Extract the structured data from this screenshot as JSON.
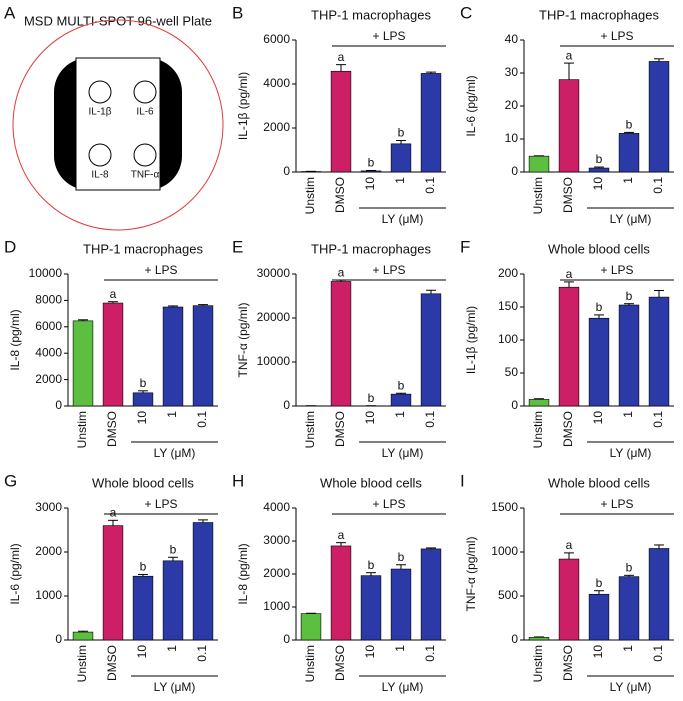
{
  "panel_a": {
    "label": "A",
    "title": "MSD MULTI-SPOT 96-well Plate",
    "spots": [
      "IL-1β",
      "IL-6",
      "IL-8",
      "TNF-α"
    ]
  },
  "chart_data": [
    {
      "type": "bar",
      "panel": "B",
      "title": "THP-1 macrophages",
      "ylabel": "IL-1β (pg/ml)",
      "group_label": "+ LPS",
      "subgroup_label": "LY (μM)",
      "categories": [
        "Unstim",
        "DMSO",
        "10",
        "1",
        "0.1"
      ],
      "colors": [
        "#5cbf3f",
        "#cc1f66",
        "#2b3aa6",
        "#2b3aa6",
        "#2b3aa6"
      ],
      "values": [
        20,
        4580,
        50,
        1280,
        4480
      ],
      "errors": [
        10,
        300,
        20,
        150,
        60
      ],
      "letters": [
        null,
        "a",
        "b",
        "b",
        null
      ],
      "ylim": [
        0,
        6000
      ],
      "yticks": [
        0,
        2000,
        4000,
        6000
      ]
    },
    {
      "type": "bar",
      "panel": "C",
      "title": "THP-1  macrophages",
      "ylabel": "IL-6 (pg/ml)",
      "group_label": "+ LPS",
      "subgroup_label": "LY (μM)",
      "categories": [
        "Unstim",
        "DMSO",
        "10",
        "1",
        "0.1"
      ],
      "colors": [
        "#5cbf3f",
        "#cc1f66",
        "#2b3aa6",
        "#2b3aa6",
        "#2b3aa6"
      ],
      "values": [
        4.8,
        28,
        1.2,
        11.7,
        33.5
      ],
      "errors": [
        0.1,
        5,
        0.3,
        0.3,
        0.8
      ],
      "letters": [
        null,
        "a",
        "b",
        "b",
        null
      ],
      "ylim": [
        0,
        40
      ],
      "yticks": [
        0,
        10,
        20,
        30,
        40
      ]
    },
    {
      "type": "bar",
      "panel": "D",
      "title": "THP-1 macrophages",
      "ylabel": "IL-8 (pg/ml)",
      "group_label": "+ LPS",
      "subgroup_label": "LY (μM)",
      "categories": [
        "Unstim",
        "DMSO",
        "10",
        "1",
        "0.1"
      ],
      "colors": [
        "#5cbf3f",
        "#cc1f66",
        "#2b3aa6",
        "#2b3aa6",
        "#2b3aa6"
      ],
      "values": [
        6450,
        7800,
        1000,
        7500,
        7600
      ],
      "errors": [
        80,
        100,
        150,
        80,
        80
      ],
      "letters": [
        null,
        "a",
        "b",
        null,
        null
      ],
      "ylim": [
        0,
        10000
      ],
      "yticks": [
        0,
        2000,
        4000,
        6000,
        8000,
        10000
      ]
    },
    {
      "type": "bar",
      "panel": "E",
      "title": "THP-1  macrophages",
      "ylabel": "TNF-α (pg/ml)",
      "group_label": "+ LPS",
      "subgroup_label": "LY (μM)",
      "categories": [
        "Unstim",
        "DMSO",
        "10",
        "1",
        "0.1"
      ],
      "colors": [
        "#5cbf3f",
        "#cc1f66",
        "#2b3aa6",
        "#2b3aa6",
        "#2b3aa6"
      ],
      "values": [
        50,
        28300,
        50,
        2700,
        25500
      ],
      "errors": [
        10,
        300,
        10,
        200,
        800
      ],
      "letters": [
        null,
        "a",
        "b",
        "b",
        null
      ],
      "ylim": [
        0,
        30000
      ],
      "yticks": [
        0,
        10000,
        20000,
        30000
      ]
    },
    {
      "type": "bar",
      "panel": "F",
      "title": "Whole blood cells",
      "ylabel": "IL-1β (pg/ml)",
      "group_label": "+ LPS",
      "subgroup_label": "LY (μM)",
      "categories": [
        "Unstim",
        "DMSO",
        "10",
        "1",
        "0.1"
      ],
      "colors": [
        "#5cbf3f",
        "#cc1f66",
        "#2b3aa6",
        "#2b3aa6",
        "#2b3aa6"
      ],
      "values": [
        10,
        180,
        133,
        153,
        165
      ],
      "errors": [
        1,
        8,
        5,
        2,
        10
      ],
      "letters": [
        null,
        "a",
        "b",
        "b",
        null
      ],
      "ylim": [
        0,
        200
      ],
      "yticks": [
        0,
        50,
        100,
        150,
        200
      ]
    },
    {
      "type": "bar",
      "panel": "G",
      "title": "Whole blood cells",
      "ylabel": "IL-6 (pg/ml)",
      "group_label": "+ LPS",
      "subgroup_label": "LY (μM)",
      "categories": [
        "Unstim",
        "DMSO",
        "10",
        "1",
        "0.1"
      ],
      "colors": [
        "#5cbf3f",
        "#cc1f66",
        "#2b3aa6",
        "#2b3aa6",
        "#2b3aa6"
      ],
      "values": [
        180,
        2600,
        1450,
        1800,
        2670
      ],
      "errors": [
        20,
        120,
        40,
        80,
        60
      ],
      "letters": [
        null,
        "a",
        "b",
        "b",
        null
      ],
      "ylim": [
        0,
        3000
      ],
      "yticks": [
        0,
        1000,
        2000,
        3000
      ]
    },
    {
      "type": "bar",
      "panel": "H",
      "title": "Whole blood cells",
      "ylabel": "IL-8 (pg/ml)",
      "group_label": "+ LPS",
      "subgroup_label": "LY (μM)",
      "categories": [
        "Unstim",
        "DMSO",
        "10",
        "1",
        "0.1"
      ],
      "colors": [
        "#5cbf3f",
        "#cc1f66",
        "#2b3aa6",
        "#2b3aa6",
        "#2b3aa6"
      ],
      "values": [
        800,
        2850,
        1950,
        2150,
        2760
      ],
      "errors": [
        10,
        100,
        90,
        130,
        30
      ],
      "letters": [
        null,
        "a",
        "b",
        "b",
        null
      ],
      "ylim": [
        0,
        4000
      ],
      "yticks": [
        0,
        1000,
        2000,
        3000,
        4000
      ]
    },
    {
      "type": "bar",
      "panel": "I",
      "title": "Whole blood cells",
      "ylabel": "TNF-α (pg/ml)",
      "group_label": "+ LPS",
      "subgroup_label": "LY (μM)",
      "categories": [
        "Unstim",
        "DMSO",
        "10",
        "1",
        "0.1"
      ],
      "colors": [
        "#5cbf3f",
        "#cc1f66",
        "#2b3aa6",
        "#2b3aa6",
        "#2b3aa6"
      ],
      "values": [
        30,
        920,
        520,
        720,
        1040
      ],
      "errors": [
        5,
        70,
        40,
        15,
        40
      ],
      "letters": [
        null,
        "a",
        "b",
        "b",
        null
      ],
      "ylim": [
        0,
        1500
      ],
      "yticks": [
        0,
        500,
        1000,
        1500
      ]
    }
  ]
}
